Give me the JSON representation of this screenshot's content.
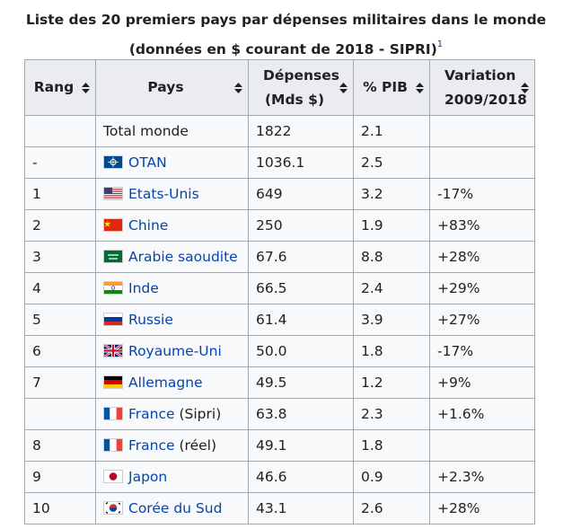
{
  "caption": {
    "title": "Liste des 20 premiers pays par dépenses militaires dans le monde",
    "subtitle": "(données en $ courant de 2018 - SIPRI)",
    "note_ref": "1"
  },
  "table": {
    "headers": [
      "Rang",
      "Pays",
      "Dépenses (Mds $)",
      "% PIB",
      "Variation 2009/2018"
    ],
    "rows": [
      {
        "country": "Total monde",
        "spending": "1822",
        "gdp": "2.1"
      },
      {
        "rank": "-",
        "country": "OTAN",
        "spending": "1036.1",
        "gdp": "2.5"
      },
      {
        "rank": "1",
        "country": "Etats-Unis",
        "spending": "649",
        "gdp": "3.2",
        "change": "-17%"
      },
      {
        "rank": "2",
        "country": "Chine",
        "spending": "250",
        "gdp": "1.9",
        "change": "+83%"
      },
      {
        "rank": "3",
        "country": "Arabie saoudite",
        "spending": "67.6",
        "gdp": "8.8",
        "change": "+28%"
      },
      {
        "rank": "4",
        "country": "Inde",
        "spending": "66.5",
        "gdp": "2.4",
        "change": "+29%"
      },
      {
        "rank": "5",
        "country": "Russie",
        "spending": "61.4",
        "gdp": "3.9",
        "change": "+27%"
      },
      {
        "rank": "6",
        "country": "Royaume-Uni",
        "spending": "50.0",
        "gdp": "1.8",
        "change": "-17%"
      },
      {
        "rank": "7",
        "country": "Allemagne",
        "spending": "49.5",
        "gdp": "1.2",
        "change": "+9%"
      },
      {
        "country": "France",
        "note": "(Sipri)",
        "spending": "63.8",
        "gdp": "2.3",
        "change": "+1.6%"
      },
      {
        "rank": "8",
        "country": "France",
        "note": "(réel)",
        "spending": "49.1",
        "gdp": "1.8"
      },
      {
        "rank": "9",
        "country": "Japon",
        "spending": "46.6",
        "gdp": "0.9",
        "change": "+2.3%"
      },
      {
        "rank": "10",
        "country": "Corée du Sud",
        "spending": "43.1",
        "gdp": "2.6",
        "change": "+28%"
      }
    ]
  }
}
